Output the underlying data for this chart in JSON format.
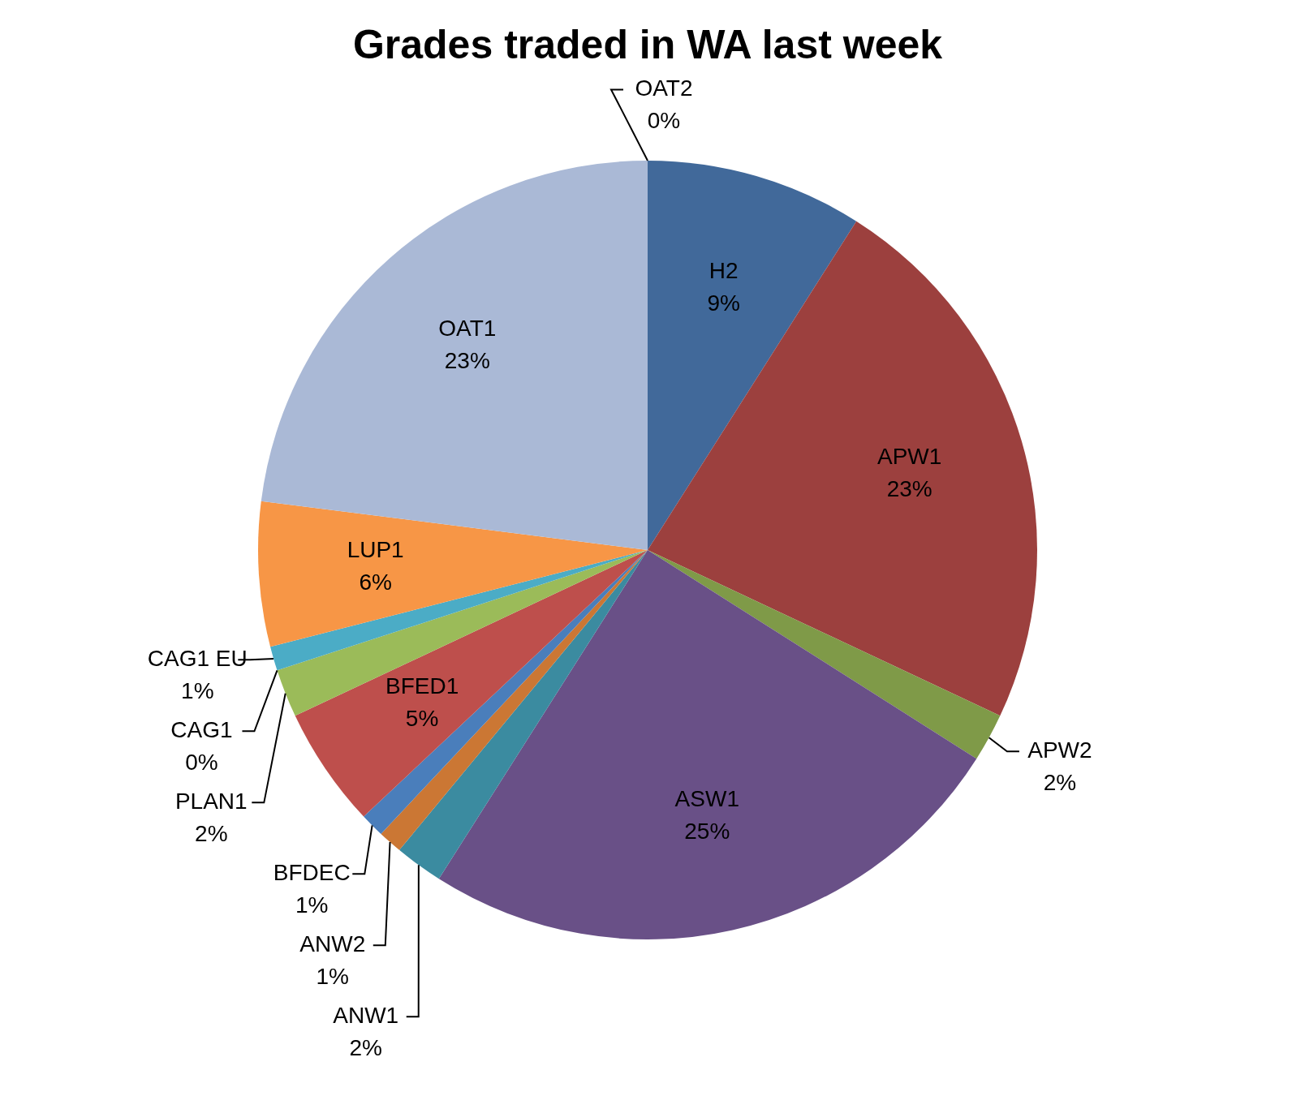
{
  "chart_data": {
    "type": "pie",
    "title": "Grades traded in WA last week",
    "categories": [
      "H2",
      "APW1",
      "APW2",
      "ASW1",
      "ANW1",
      "ANW2",
      "BFDEC",
      "BFED1",
      "PLAN1",
      "CAG1",
      "CAG1 EU",
      "LUP1",
      "OAT1",
      "OAT2"
    ],
    "values": [
      9,
      23,
      2,
      25,
      2,
      1,
      1,
      5,
      2,
      0,
      1,
      6,
      23,
      0
    ],
    "colors": [
      "#41699a",
      "#9c403e",
      "#7f9a48",
      "#695087",
      "#3b8ba0",
      "#cb7734",
      "#4a7ebb",
      "#be4f4c",
      "#9bbb59",
      "#8064a2",
      "#4bacc6",
      "#f79646",
      "#aab9d6",
      "#d8a7a6"
    ],
    "value_labels": [
      "9%",
      "23%",
      "2%",
      "25%",
      "2%",
      "1%",
      "1%",
      "5%",
      "2%",
      "0%",
      "1%",
      "6%",
      "23%",
      "0%"
    ],
    "legend": false
  }
}
